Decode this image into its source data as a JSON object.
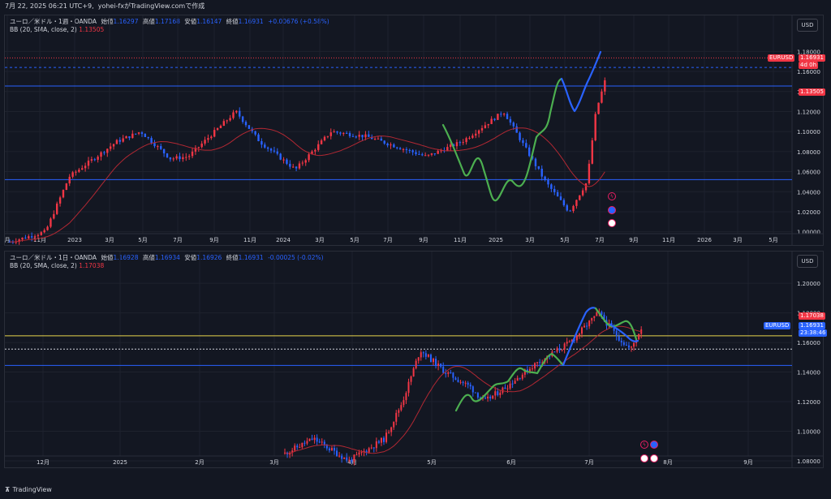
{
  "header": {
    "timestamp": "7月 22, 2025 06:21 UTC+9",
    "author": "yohei-fxがTradingView.comで作成"
  },
  "pane1": {
    "symbol": "ユーロ／米ドル・1週・OANDA",
    "open_label": "始値",
    "open": "1.16297",
    "high_label": "高値",
    "high": "1.17168",
    "low_label": "安値",
    "low": "1.16147",
    "close_label": "終値",
    "close": "1.16931",
    "change": "+0.00676 (+0.58%)",
    "bb_label": "BB (20, SMA, close, 2)",
    "bb_value": "1.13505",
    "currency": "USD",
    "price_axis": [
      "1.18000",
      "1.16000",
      "1.14000",
      "1.12000",
      "1.10000",
      "1.08000",
      "1.06000",
      "1.04000",
      "1.02000",
      "1.00000"
    ],
    "time_axis": [
      "月",
      "11月",
      "2023",
      "3月",
      "5月",
      "7月",
      "9月",
      "11月",
      "2024",
      "3月",
      "5月",
      "7月",
      "9月",
      "11月",
      "2025",
      "3月",
      "5月",
      "7月",
      "9月",
      "11月",
      "2026",
      "3月",
      "5月"
    ],
    "tag_symbol": "EURUSD",
    "tag_price": "1.16931",
    "tag_time": "4d 0h",
    "tag_bb": "1.13505"
  },
  "pane2": {
    "symbol": "ユーロ／米ドル・1日・OANDA",
    "open_label": "始値",
    "open": "1.16928",
    "high_label": "高値",
    "high": "1.16934",
    "low_label": "安値",
    "low": "1.16926",
    "close_label": "終値",
    "close": "1.16931",
    "change": "-0.00025 (-0.02%)",
    "bb_label": "BB (20, SMA, close, 2)",
    "bb_value": "1.17038",
    "currency": "USD",
    "price_axis": [
      "1.20000",
      "1.18000",
      "1.16000",
      "1.14000",
      "1.12000",
      "1.10000",
      "1.08000"
    ],
    "time_axis": [
      "12月",
      "2025",
      "2月",
      "3月",
      "4月",
      "5月",
      "6月",
      "7月",
      "8月",
      "9月"
    ],
    "tag_symbol": "EURUSD",
    "tag_price": "1.16931",
    "tag_time": "23:38:46",
    "tag_bb": "1.17038"
  },
  "footer": {
    "brand": "TradingView"
  },
  "colors": {
    "up": "#f23645",
    "down": "#2962ff",
    "wave": "#4caf50",
    "bb": "#b22833",
    "hline": "#2962ff",
    "yline": "#e8d44d"
  }
}
